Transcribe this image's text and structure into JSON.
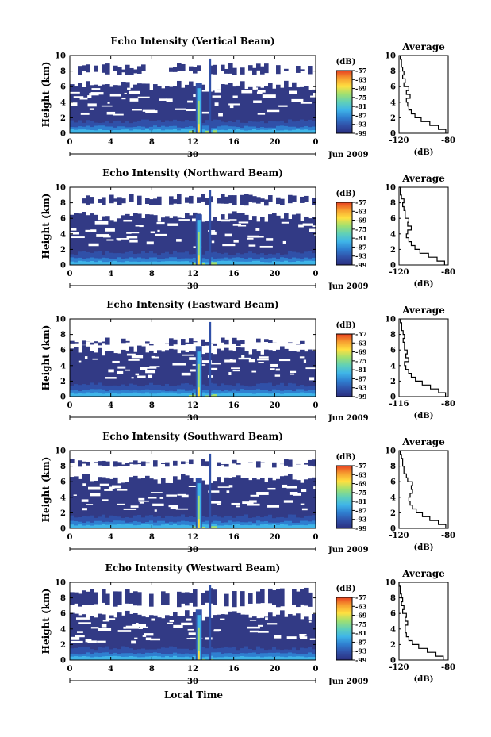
{
  "figure": {
    "xlabel": "Local Time",
    "date_marker": "30",
    "month_label": "Jun 2009",
    "colorbar_unit": "(dB)",
    "avg_title": "Average",
    "avg_xlabel": "(dB)",
    "colors": {
      "background": "#ffffff",
      "echo_dark": "#323a85",
      "colormap": [
        "#2b2f7f",
        "#3050a8",
        "#2f7fd0",
        "#3fb5e8",
        "#60d0b8",
        "#a0e070",
        "#ffe040",
        "#f7a030",
        "#e84020"
      ]
    }
  },
  "chart_data": [
    {
      "type": "heatmap",
      "title": "Echo Intensity (Vertical Beam)",
      "xlabel": "Local Time",
      "ylabel": "Height (km)",
      "x_ticks": [
        "0",
        "4",
        "8",
        "12",
        "16",
        "20",
        "0"
      ],
      "xlim": [
        0,
        24
      ],
      "y_ticks": [
        "0",
        "2",
        "4",
        "6",
        "8",
        "10"
      ],
      "ylim": [
        0,
        10
      ],
      "colorbar": {
        "label": "(dB)",
        "ticks": [
          "-57",
          "-63",
          "-69",
          "-75",
          "-81",
          "-87",
          "-93",
          "-99"
        ],
        "range": [
          -99,
          -57
        ]
      },
      "echo_top_km": 6.1,
      "upper_layer_km": [
        7.5,
        9.0
      ],
      "average_profile": {
        "xlabel": "(dB)",
        "xlim": [
          -120,
          -80
        ],
        "x_ticks": [
          "-120",
          "-80"
        ],
        "y_ticks": [
          "0",
          "2",
          "4",
          "6",
          "8",
          "10"
        ],
        "height": [
          0,
          0.5,
          1,
          1.5,
          2,
          2.5,
          3,
          3.5,
          4,
          4.5,
          5,
          5.5,
          6,
          6.5,
          7,
          7.5,
          8,
          8.5,
          9,
          9.5,
          10
        ],
        "value": [
          -82,
          -88,
          -95,
          -102,
          -107,
          -110,
          -112,
          -113,
          -114,
          -111,
          -114,
          -112,
          -116,
          -115,
          -117,
          -116,
          -117,
          -118,
          -118,
          -119,
          -119
        ]
      }
    },
    {
      "type": "heatmap",
      "title": "Echo Intensity (Northward Beam)",
      "xlabel": "Local Time",
      "ylabel": "Height (km)",
      "x_ticks": [
        "0",
        "4",
        "8",
        "12",
        "16",
        "20",
        "0"
      ],
      "xlim": [
        0,
        24
      ],
      "y_ticks": [
        "0",
        "2",
        "4",
        "6",
        "8",
        "10"
      ],
      "ylim": [
        0,
        10
      ],
      "colorbar": {
        "label": "(dB)",
        "ticks": [
          "-57",
          "-63",
          "-69",
          "-75",
          "-81",
          "-87",
          "-93",
          "-99"
        ],
        "range": [
          -99,
          -57
        ]
      },
      "echo_top_km": 6.2,
      "upper_layer_km": [
        7.6,
        9.2
      ],
      "average_profile": {
        "xlabel": "(dB)",
        "xlim": [
          -120,
          -80
        ],
        "x_ticks": [
          "-120",
          "-80"
        ],
        "y_ticks": [
          "0",
          "2",
          "4",
          "6",
          "8",
          "10"
        ],
        "height": [
          0,
          0.5,
          1,
          1.5,
          2,
          2.5,
          3,
          3.5,
          4,
          4.5,
          5,
          5.5,
          6,
          6.5,
          7,
          7.5,
          8,
          8.5,
          9,
          9.5,
          10
        ],
        "value": [
          -83,
          -89,
          -96,
          -103,
          -107,
          -110,
          -112,
          -114,
          -113,
          -110,
          -113,
          -112,
          -115,
          -115,
          -116,
          -117,
          -116,
          -118,
          -119,
          -119,
          -120
        ]
      }
    },
    {
      "type": "heatmap",
      "title": "Echo Intensity (Eastward Beam)",
      "xlabel": "Local Time",
      "ylabel": "Height (km)",
      "x_ticks": [
        "0",
        "4",
        "8",
        "12",
        "16",
        "20",
        "0"
      ],
      "xlim": [
        0,
        24
      ],
      "y_ticks": [
        "0",
        "2",
        "4",
        "6",
        "8",
        "10"
      ],
      "ylim": [
        0,
        10
      ],
      "colorbar": {
        "label": "(dB)",
        "ticks": [
          "-57",
          "-63",
          "-69",
          "-75",
          "-81",
          "-87",
          "-93",
          "-99"
        ],
        "range": [
          -99,
          -57
        ]
      },
      "echo_top_km": 5.9,
      "upper_layer_km": [
        6.5,
        7.6
      ],
      "average_profile": {
        "xlabel": "(dB)",
        "xlim": [
          -116,
          -80
        ],
        "x_ticks": [
          "-116",
          "-80"
        ],
        "y_ticks": [
          "0",
          "2",
          "4",
          "6",
          "8",
          "10"
        ],
        "height": [
          0,
          0.5,
          1,
          1.5,
          2,
          2.5,
          3,
          3.5,
          4,
          4.5,
          5,
          5.5,
          6,
          6.5,
          7,
          7.5,
          8,
          8.5,
          9,
          9.5,
          10
        ],
        "value": [
          -82,
          -87,
          -93,
          -99,
          -104,
          -107,
          -109,
          -111,
          -112,
          -109,
          -111,
          -110,
          -112,
          -112,
          -113,
          -112,
          -113,
          -114,
          -114,
          -115,
          -115
        ]
      }
    },
    {
      "type": "heatmap",
      "title": "Echo Intensity (Southward Beam)",
      "xlabel": "Local Time",
      "ylabel": "Height (km)",
      "x_ticks": [
        "0",
        "4",
        "8",
        "12",
        "16",
        "20",
        "0"
      ],
      "xlim": [
        0,
        24
      ],
      "y_ticks": [
        "0",
        "2",
        "4",
        "6",
        "8",
        "10"
      ],
      "ylim": [
        0,
        10
      ],
      "colorbar": {
        "label": "(dB)",
        "ticks": [
          "-57",
          "-63",
          "-69",
          "-75",
          "-81",
          "-87",
          "-93",
          "-99"
        ],
        "range": [
          -99,
          -57
        ]
      },
      "echo_top_km": 6.3,
      "upper_layer_km": [
        7.8,
        9.0
      ],
      "average_profile": {
        "xlabel": "(dB)",
        "xlim": [
          -120,
          -80
        ],
        "x_ticks": [
          "-120",
          "-80"
        ],
        "y_ticks": [
          "0",
          "2",
          "4",
          "6",
          "8",
          "10"
        ],
        "height": [
          0,
          0.5,
          1,
          1.5,
          2,
          2.5,
          3,
          3.5,
          4,
          4.5,
          5,
          5.5,
          6,
          6.5,
          7,
          7.5,
          8,
          8.5,
          9,
          9.5,
          10
        ],
        "value": [
          -82,
          -88,
          -95,
          -101,
          -106,
          -109,
          -111,
          -112,
          -111,
          -109,
          -110,
          -109,
          -113,
          -114,
          -116,
          -116,
          -117,
          -117,
          -118,
          -119,
          -119
        ]
      }
    },
    {
      "type": "heatmap",
      "title": "Echo Intensity (Westward Beam)",
      "xlabel": "Local Time",
      "ylabel": "Height (km)",
      "x_ticks": [
        "0",
        "4",
        "8",
        "12",
        "16",
        "20",
        "0"
      ],
      "xlim": [
        0,
        24
      ],
      "y_ticks": [
        "0",
        "2",
        "4",
        "6",
        "8",
        "10"
      ],
      "ylim": [
        0,
        10
      ],
      "colorbar": {
        "label": "(dB)",
        "ticks": [
          "-57",
          "-63",
          "-69",
          "-75",
          "-81",
          "-87",
          "-93",
          "-99"
        ],
        "range": [
          -99,
          -57
        ]
      },
      "echo_top_km": 5.7,
      "upper_layer_km": [
        6.8,
        9.3
      ],
      "average_profile": {
        "xlabel": "(dB)",
        "xlim": [
          -120,
          -80
        ],
        "x_ticks": [
          "-120",
          "-80"
        ],
        "y_ticks": [
          "0",
          "2",
          "4",
          "6",
          "8",
          "10"
        ],
        "height": [
          0,
          0.5,
          1,
          1.5,
          2,
          2.5,
          3,
          3.5,
          4,
          4.5,
          5,
          5.5,
          6,
          6.5,
          7,
          7.5,
          8,
          8.5,
          9,
          9.5,
          10
        ],
        "value": [
          -84,
          -90,
          -97,
          -104,
          -109,
          -112,
          -114,
          -115,
          -115,
          -113,
          -115,
          -114,
          -117,
          -116,
          -118,
          -117,
          -118,
          -119,
          -119,
          -120,
          -120
        ]
      }
    }
  ]
}
